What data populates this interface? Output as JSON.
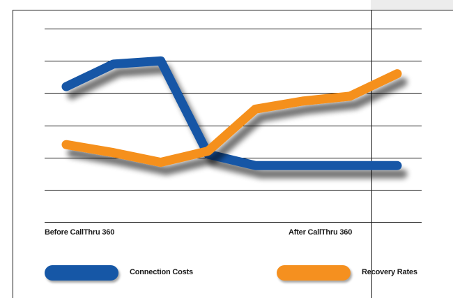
{
  "chart_data": {
    "type": "line",
    "categories": [
      "Before CallThru 360",
      "",
      "",
      "",
      "",
      "",
      "",
      "After CallThru 360"
    ],
    "series": [
      {
        "name": "Connection Costs",
        "color": "#1657a6",
        "values": [
          4.2,
          4.9,
          5.0,
          2.1,
          1.75,
          1.75,
          1.75,
          1.75
        ]
      },
      {
        "name": "Recovery Rates",
        "color": "#f5901f",
        "values": [
          2.4,
          2.15,
          1.85,
          2.2,
          3.5,
          3.75,
          3.9,
          4.6
        ]
      }
    ],
    "ylim": [
      0,
      6
    ],
    "grid": true,
    "legend_position": "bottom",
    "xlabel": "",
    "ylabel": "",
    "title": ""
  }
}
